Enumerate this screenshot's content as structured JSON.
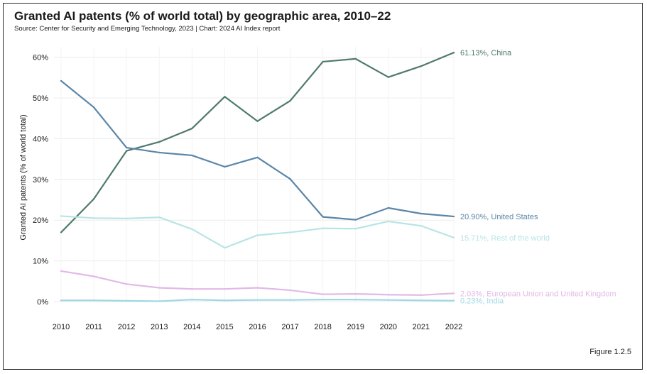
{
  "title": "Granted AI patents (% of world total) by geographic area, 2010–22",
  "subtitle": "Source: Center for Security and Emerging Technology, 2023 | Chart: 2024 AI Index report",
  "figure_label": "Figure 1.2.5",
  "chart_data": {
    "type": "line",
    "x": [
      2010,
      2011,
      2012,
      2013,
      2014,
      2015,
      2016,
      2017,
      2018,
      2019,
      2020,
      2021,
      2022
    ],
    "ylabel": "Granted AI patents (% of world total)",
    "xlabel": "",
    "ylim": [
      0,
      65
    ],
    "yticks": [
      0,
      10,
      20,
      30,
      40,
      50,
      60
    ],
    "ytick_labels": [
      "0%",
      "10%",
      "20%",
      "30%",
      "40%",
      "50%",
      "60%"
    ],
    "grid": true,
    "series": [
      {
        "name": "China",
        "color": "#4f7a6c",
        "end_label": "61.13%, China",
        "values": [
          17.0,
          25.2,
          37.0,
          39.2,
          42.5,
          50.3,
          44.3,
          49.3,
          58.9,
          59.6,
          55.1,
          57.8,
          61.13
        ]
      },
      {
        "name": "United States",
        "color": "#5b86a8",
        "end_label": "20.90%, United States",
        "values": [
          54.2,
          47.7,
          37.8,
          36.6,
          35.9,
          33.1,
          35.4,
          30.1,
          20.8,
          20.1,
          23.0,
          21.6,
          20.9
        ]
      },
      {
        "name": "Rest of the world",
        "color": "#b9e4e4",
        "end_label": "15.71%, Rest of the world",
        "values": [
          21.0,
          20.5,
          20.4,
          20.7,
          17.8,
          13.2,
          16.3,
          17.0,
          18.0,
          17.9,
          19.7,
          18.6,
          15.71
        ]
      },
      {
        "name": "European Union and United Kingdom",
        "color": "#e2b9e6",
        "end_label": "2.03%, European Union and United Kingdom",
        "values": [
          7.5,
          6.2,
          4.3,
          3.4,
          3.1,
          3.1,
          3.4,
          2.8,
          1.8,
          1.9,
          1.7,
          1.6,
          2.03
        ]
      },
      {
        "name": "India",
        "color": "#9fd8e3",
        "end_label": "0.23%, India",
        "values": [
          0.3,
          0.3,
          0.2,
          0.1,
          0.5,
          0.3,
          0.4,
          0.4,
          0.5,
          0.5,
          0.4,
          0.3,
          0.23
        ]
      }
    ]
  }
}
